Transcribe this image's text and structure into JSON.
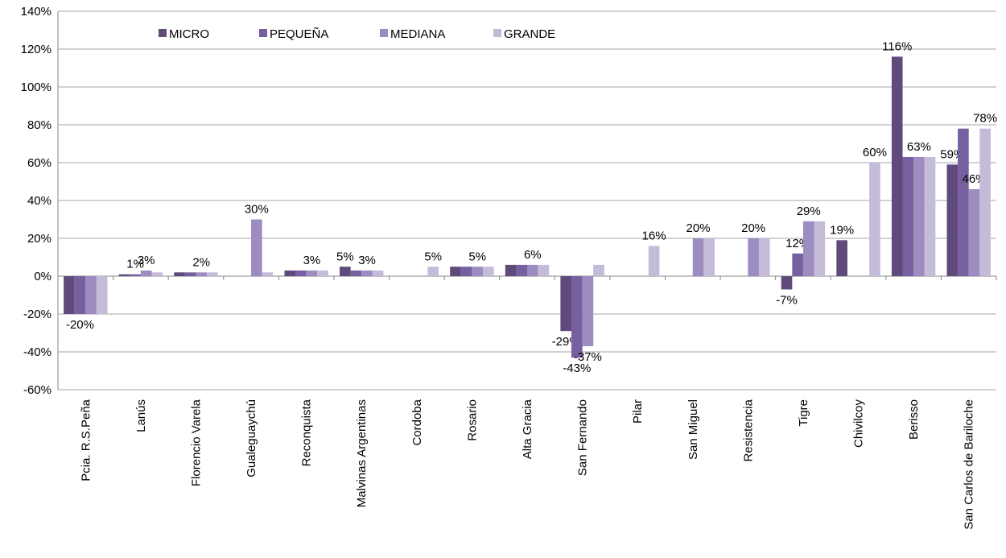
{
  "chart_data": {
    "type": "bar",
    "categories": [
      "Pcia. R.S.Peña",
      "Lanús",
      "Florencio Varela",
      "Gualeguaychú",
      "Reconquista",
      "Malvinas Argentinas",
      "Cordoba",
      "Rosario",
      "Alta Gracia",
      "San Fernando",
      "Pilar",
      "San Miguel",
      "Resistencia",
      "Tigre",
      "Chivilcoy",
      "Berisso",
      "San Carlos de Bariloche"
    ],
    "series": [
      {
        "name": "MICRO",
        "color": "#604a7b",
        "values": [
          -20,
          1,
          2,
          0,
          3,
          5,
          0,
          5,
          6,
          -29,
          0,
          0,
          0,
          -7,
          19,
          116,
          59
        ],
        "value_labels": [
          null,
          null,
          null,
          null,
          null,
          "5%",
          null,
          null,
          null,
          "-29%",
          null,
          null,
          null,
          "-7%",
          "19%",
          "116%",
          "59%"
        ]
      },
      {
        "name": "PEQUEÑA",
        "color": "#7660a0",
        "values": [
          -20,
          1,
          2,
          0,
          3,
          3,
          0,
          5,
          6,
          -43,
          0,
          0,
          0,
          12,
          0,
          63,
          78
        ],
        "value_labels": [
          "-20%",
          "1%",
          null,
          null,
          null,
          null,
          null,
          null,
          null,
          "-43%",
          null,
          null,
          null,
          "12%",
          null,
          null,
          null
        ]
      },
      {
        "name": "MEDIANA",
        "color": "#9c8cc0",
        "values": [
          -20,
          3,
          2,
          30,
          3,
          3,
          0,
          5,
          6,
          -37,
          0,
          20,
          20,
          29,
          0,
          63,
          46
        ],
        "value_labels": [
          null,
          "3%",
          "2%",
          "30%",
          "3%",
          "3%",
          null,
          "5%",
          "6%",
          "-37%",
          null,
          "20%",
          "20%",
          "29%",
          null,
          "63%",
          "46%"
        ]
      },
      {
        "name": "GRANDE",
        "color": "#c4bbd9",
        "values": [
          -20,
          2,
          2,
          2,
          3,
          3,
          5,
          5,
          6,
          6,
          16,
          20,
          20,
          29,
          60,
          63,
          78
        ],
        "value_labels": [
          null,
          null,
          null,
          null,
          null,
          null,
          "5%",
          null,
          null,
          null,
          "16%",
          null,
          null,
          null,
          "60%",
          null,
          "78%"
        ]
      }
    ],
    "ylim": [
      -60,
      140
    ],
    "yticks": [
      {
        "value": -60,
        "label": "-60%"
      },
      {
        "value": -40,
        "label": "-40%"
      },
      {
        "value": -20,
        "label": "-20%"
      },
      {
        "value": 0,
        "label": "0%"
      },
      {
        "value": 20,
        "label": "20%"
      },
      {
        "value": 40,
        "label": "40%"
      },
      {
        "value": 60,
        "label": "60%"
      },
      {
        "value": 80,
        "label": "80%"
      },
      {
        "value": 100,
        "label": "100%"
      },
      {
        "value": 120,
        "label": "120%"
      },
      {
        "value": 140,
        "label": "140%"
      }
    ],
    "grid": true,
    "legend": "top"
  }
}
